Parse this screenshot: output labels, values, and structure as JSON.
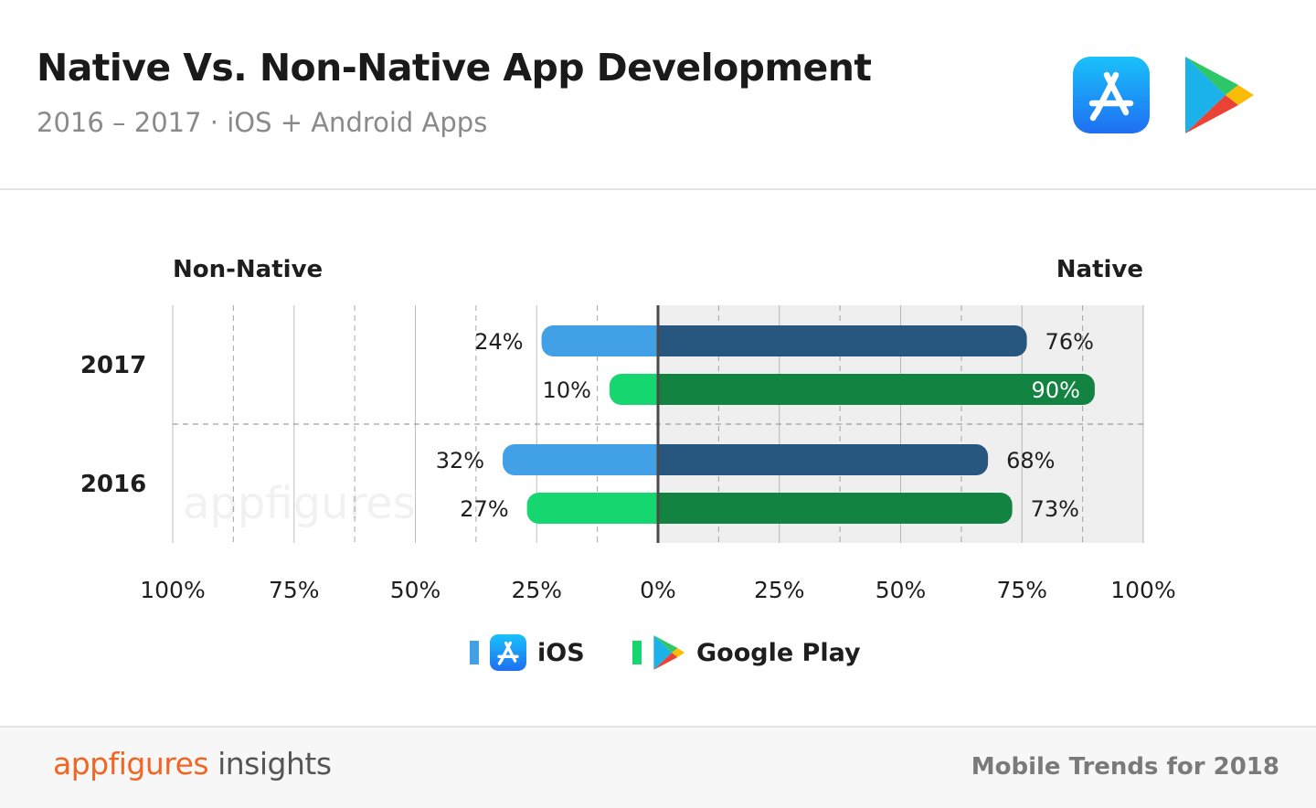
{
  "header": {
    "title": "Native Vs. Non-Native App Development",
    "subtitle": "2016 – 2017 · iOS + Android Apps"
  },
  "icons": {
    "app_store": "app-store-icon",
    "google_play": "google-play-icon"
  },
  "colors": {
    "ios_native": "#27567f",
    "ios_non_native": "#42a0e6",
    "gp_native": "#128341",
    "gp_non_native": "#15d66f",
    "native_bg": "#efefef",
    "grid": "#8a8a8a"
  },
  "chart_data": {
    "type": "bar",
    "orientation": "horizontal-diverging",
    "left_label": "Non-Native",
    "right_label": "Native",
    "tick_labels": [
      "100%",
      "75%",
      "50%",
      "25%",
      "0%",
      "25%",
      "50%",
      "75%",
      "100%"
    ],
    "xlim": [
      -100,
      100
    ],
    "categories": [
      "2017",
      "2016"
    ],
    "series": [
      {
        "name": "iOS",
        "native": [
          76,
          68
        ],
        "non_native": [
          24,
          32
        ]
      },
      {
        "name": "Google Play",
        "native": [
          90,
          73
        ],
        "non_native": [
          10,
          27
        ]
      }
    ],
    "value_labels": {
      "iOS": {
        "native": [
          "76%",
          "68%"
        ],
        "non_native": [
          "24%",
          "32%"
        ]
      },
      "Google Play": {
        "native": [
          "90%",
          "73%"
        ],
        "non_native": [
          "10%",
          "27%"
        ]
      }
    },
    "watermark": "appfigures"
  },
  "legend": {
    "ios_label": "iOS",
    "gp_label": "Google Play"
  },
  "footer": {
    "brand_1": "appfigures",
    "brand_2": " insights",
    "trend": "Mobile Trends for 2018"
  }
}
